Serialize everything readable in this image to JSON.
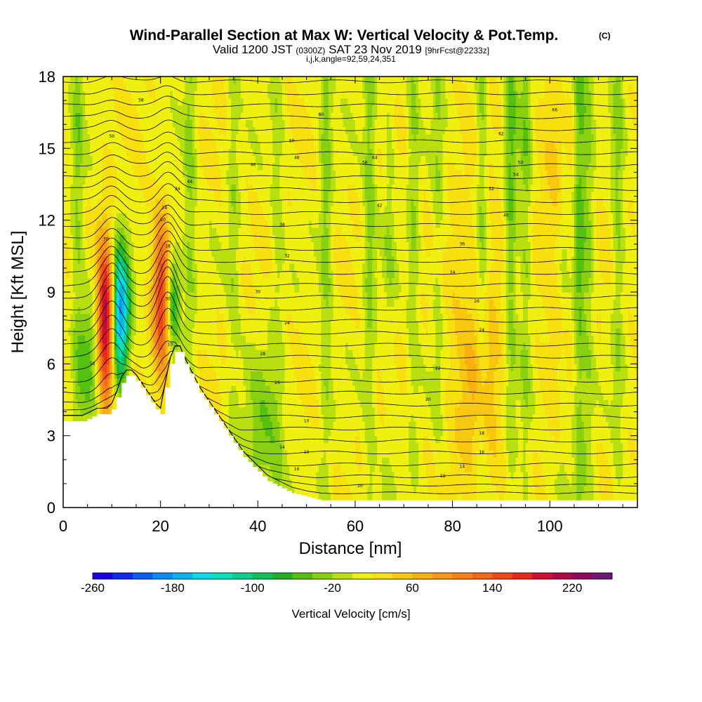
{
  "chart_data": {
    "type": "heatmap",
    "title": "Wind-Parallel Section at Max W: Vertical Velocity & Pot.Temp.",
    "title_mark": "(C)",
    "subtitle_main": "Valid 1200 JST",
    "subtitle_utc": "(0300Z)",
    "subtitle_date": "SAT 23 Nov 2019",
    "subtitle_fcst": "[9hrFcst@2233z]",
    "subtitle2": "i,j,k,angle=92,59,24,351",
    "xlabel": "Distance [nm]",
    "ylabel": "Height [Kft MSL]",
    "xlim": [
      0,
      118
    ],
    "ylim": [
      0,
      18
    ],
    "x_ticks": [
      0,
      20,
      40,
      60,
      80,
      100
    ],
    "x_tick_labels": [
      "0",
      "20",
      "40",
      "60",
      "80",
      "100"
    ],
    "y_ticks": [
      0,
      3,
      6,
      9,
      12,
      15,
      18
    ],
    "y_tick_labels": [
      "0",
      "3",
      "6",
      "9",
      "12",
      "15",
      "18"
    ],
    "colorbar": {
      "label": "Vertical Velocity [cm/s]",
      "min": -260,
      "max": 260,
      "step": 20,
      "tick_values": [
        -260,
        -180,
        -100,
        -20,
        60,
        140,
        220
      ],
      "tick_labels": [
        "-260",
        "-180",
        "-100",
        "-20",
        "60",
        "140",
        "220"
      ],
      "colors": [
        "#1a00e8",
        "#0e2cf0",
        "#0a5ef2",
        "#0a8cf2",
        "#08b4f0",
        "#08d8e8",
        "#06e0bc",
        "#06d08c",
        "#10c05a",
        "#24b024",
        "#54c010",
        "#88d010",
        "#b8e010",
        "#f0f010",
        "#f8e010",
        "#f8c810",
        "#f8b010",
        "#f89818",
        "#f88018",
        "#f06818",
        "#f04818",
        "#e82818",
        "#d01030",
        "#b00848",
        "#900860",
        "#701878"
      ]
    },
    "terrain": {
      "x": [
        0,
        4,
        5,
        6,
        7,
        8,
        9,
        10,
        11,
        12,
        13,
        14,
        15,
        16,
        17,
        18,
        19,
        20,
        21,
        22,
        23,
        24,
        25,
        26,
        27,
        28,
        29,
        30,
        31,
        32,
        33,
        34,
        35,
        36,
        37,
        38,
        39,
        40,
        41,
        42,
        43,
        44,
        45,
        46,
        47,
        48,
        49,
        50,
        51,
        52,
        53,
        54,
        56,
        58,
        118
      ],
      "height": [
        3.6,
        3.6,
        3.7,
        3.8,
        3.9,
        3.9,
        3.9,
        4.1,
        4.6,
        5.2,
        5.5,
        5.5,
        5.3,
        5.0,
        4.7,
        4.4,
        4.1,
        3.9,
        5.0,
        6.0,
        6.5,
        6.5,
        6.0,
        5.6,
        5.2,
        4.8,
        4.5,
        4.2,
        3.9,
        3.6,
        3.3,
        3.0,
        2.7,
        2.4,
        2.1,
        1.9,
        1.7,
        1.5,
        1.3,
        1.1,
        1.0,
        0.9,
        0.8,
        0.7,
        0.6,
        0.55,
        0.5,
        0.45,
        0.4,
        0.35,
        0.3,
        0.3,
        0.3,
        0.3,
        0.3
      ]
    },
    "velocity_features": [
      {
        "x": 8.8,
        "z": 7.8,
        "w": 230,
        "sx": 1.3,
        "sz": 2.3
      },
      {
        "x": 11.6,
        "z": 8.0,
        "w": -220,
        "sx": 1.4,
        "sz": 2.0
      },
      {
        "x": 20.3,
        "z": 8.6,
        "w": 160,
        "sx": 1.3,
        "sz": 2.3
      },
      {
        "x": 22.4,
        "z": 8.8,
        "w": -120,
        "sx": 1.1,
        "sz": 1.5
      },
      {
        "x": 5.5,
        "z": 6.5,
        "w": -60,
        "sx": 1.6,
        "sz": 2.0
      },
      {
        "x": 41,
        "z": 2.5,
        "w": -50,
        "sx": 3,
        "sz": 2.5
      },
      {
        "x": 85,
        "z": 6.0,
        "w": 40,
        "sx": 4,
        "sz": 5
      },
      {
        "x": 103,
        "z": 13.0,
        "w": 30,
        "sx": 4,
        "sz": 5
      }
    ],
    "vertical_bands": [
      {
        "x": 3,
        "w": -40
      },
      {
        "x": 26,
        "w": -40
      },
      {
        "x": 35,
        "w": -30
      },
      {
        "x": 44,
        "w": -25
      },
      {
        "x": 54,
        "w": -45
      },
      {
        "x": 63,
        "w": -45
      },
      {
        "x": 67,
        "w": -25
      },
      {
        "x": 72,
        "w": -35
      },
      {
        "x": 77,
        "w": -30
      },
      {
        "x": 86,
        "w": -45
      },
      {
        "x": 92,
        "w": -60
      },
      {
        "x": 95,
        "w": -45
      },
      {
        "x": 103,
        "w": -30
      },
      {
        "x": 106,
        "w": -80
      },
      {
        "x": 108,
        "w": -45
      },
      {
        "x": 114,
        "w": -40
      }
    ],
    "theta_contour_labels": [
      {
        "text": "10",
        "x": 50,
        "z": 3.6
      },
      {
        "text": "10",
        "x": 50,
        "z": 2.3
      },
      {
        "text": "12",
        "x": 78,
        "z": 1.3
      },
      {
        "text": "14",
        "x": 45,
        "z": 2.5
      },
      {
        "text": "14",
        "x": 82,
        "z": 1.7
      },
      {
        "text": "16",
        "x": 48,
        "z": 1.6
      },
      {
        "text": "16",
        "x": 86,
        "z": 2.3
      },
      {
        "text": "18",
        "x": 86,
        "z": 3.1
      },
      {
        "text": "20",
        "x": 61,
        "z": 0.9
      },
      {
        "text": "20",
        "x": 75,
        "z": 4.5
      },
      {
        "text": "22",
        "x": 77,
        "z": 5.8
      },
      {
        "text": "24",
        "x": 46,
        "z": 7.7
      },
      {
        "text": "24",
        "x": 86,
        "z": 7.4
      },
      {
        "text": "26",
        "x": 44,
        "z": 5.2
      },
      {
        "text": "26",
        "x": 85,
        "z": 8.6
      },
      {
        "text": "28",
        "x": 41,
        "z": 6.4
      },
      {
        "text": "30",
        "x": 40,
        "z": 9.0
      },
      {
        "text": "32",
        "x": 46,
        "z": 10.5
      },
      {
        "text": "34",
        "x": 80,
        "z": 9.8
      },
      {
        "text": "36",
        "x": 82,
        "z": 11.0
      },
      {
        "text": "38",
        "x": 45,
        "z": 11.8
      },
      {
        "text": "40",
        "x": 91,
        "z": 12.2
      },
      {
        "text": "42",
        "x": 65,
        "z": 12.6
      },
      {
        "text": "44",
        "x": 26,
        "z": 13.6
      },
      {
        "text": "46",
        "x": 39,
        "z": 14.3
      },
      {
        "text": "48",
        "x": 48,
        "z": 14.6
      },
      {
        "text": "50",
        "x": 10,
        "z": 15.5
      },
      {
        "text": "50",
        "x": 47,
        "z": 15.3
      },
      {
        "text": "50",
        "x": 94,
        "z": 14.4
      },
      {
        "text": "52",
        "x": 88,
        "z": 13.3
      },
      {
        "text": "54",
        "x": 93,
        "z": 13.9
      },
      {
        "text": "55",
        "x": 6,
        "z": 6.0
      },
      {
        "text": "56",
        "x": 62,
        "z": 14.4
      },
      {
        "text": "58",
        "x": 16,
        "z": 17.0
      },
      {
        "text": "60",
        "x": 53,
        "z": 16.4
      },
      {
        "text": "62",
        "x": 90,
        "z": 15.6
      },
      {
        "text": "64",
        "x": 64,
        "z": 14.6
      },
      {
        "text": "66",
        "x": 101,
        "z": 16.6
      },
      {
        "text": "20",
        "x": 20.5,
        "z": 12.0
      },
      {
        "text": "24",
        "x": 20.8,
        "z": 12.5
      },
      {
        "text": "34",
        "x": 23.5,
        "z": 13.3
      },
      {
        "text": "30",
        "x": 8.8,
        "z": 11.2
      },
      {
        "text": "18",
        "x": 21.5,
        "z": 10.9
      },
      {
        "text": "30",
        "x": 21.5,
        "z": 8.7
      },
      {
        "text": "14",
        "x": 22.0,
        "z": 7.5
      },
      {
        "text": "10",
        "x": 22.0,
        "z": 6.8
      }
    ]
  }
}
